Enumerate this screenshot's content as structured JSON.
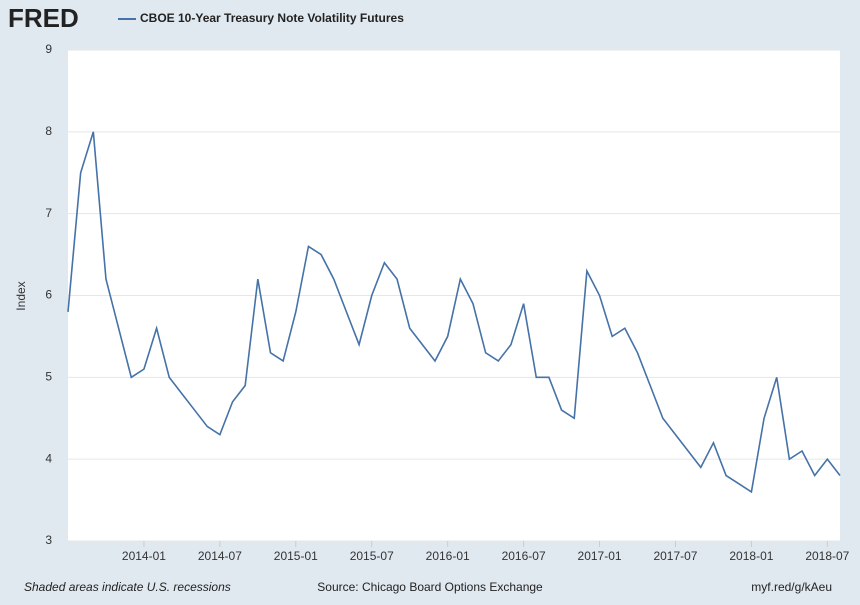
{
  "chart_data": {
    "type": "line",
    "logo": "FRED",
    "y_label": "Index",
    "note": "Shaded areas indicate U.S. recessions",
    "source": "Source: Chicago Board Options Exchange",
    "link": "myf.red/g/kAeu",
    "grid": true,
    "x": [
      "2013-07",
      "2013-08",
      "2013-09",
      "2013-10",
      "2013-11",
      "2013-12",
      "2014-01",
      "2014-02",
      "2014-03",
      "2014-04",
      "2014-05",
      "2014-06",
      "2014-07",
      "2014-08",
      "2014-09",
      "2014-10",
      "2014-11",
      "2014-12",
      "2015-01",
      "2015-02",
      "2015-03",
      "2015-04",
      "2015-05",
      "2015-06",
      "2015-07",
      "2015-08",
      "2015-09",
      "2015-10",
      "2015-11",
      "2015-12",
      "2016-01",
      "2016-02",
      "2016-03",
      "2016-04",
      "2016-05",
      "2016-06",
      "2016-07",
      "2016-08",
      "2016-09",
      "2016-10",
      "2016-11",
      "2016-12",
      "2017-01",
      "2017-02",
      "2017-03",
      "2017-04",
      "2017-05",
      "2017-06",
      "2017-07",
      "2017-08",
      "2017-09",
      "2017-10",
      "2017-11",
      "2017-12",
      "2018-01",
      "2018-02",
      "2018-03",
      "2018-04",
      "2018-05",
      "2018-06",
      "2018-07",
      "2018-08"
    ],
    "series": [
      {
        "name": "CBOE 10-Year Treasury Note Volatility Futures",
        "color": "#4572a7",
        "values": [
          5.8,
          7.5,
          8.0,
          6.2,
          5.6,
          5.0,
          5.1,
          5.6,
          5.0,
          4.8,
          4.6,
          4.4,
          4.3,
          4.7,
          4.9,
          6.2,
          5.3,
          5.2,
          5.8,
          6.6,
          6.5,
          6.2,
          5.8,
          5.4,
          6.0,
          6.4,
          6.2,
          5.6,
          5.4,
          5.2,
          5.5,
          6.2,
          5.9,
          5.3,
          5.2,
          5.4,
          5.9,
          5.0,
          5.0,
          4.6,
          4.5,
          6.3,
          6.0,
          5.5,
          5.6,
          5.3,
          4.9,
          4.5,
          4.3,
          4.1,
          3.9,
          4.2,
          3.8,
          3.7,
          3.6,
          4.5,
          5.0,
          4.0,
          4.1,
          3.8,
          4.0,
          3.8
        ]
      }
    ],
    "xlim": [
      "2013-07",
      "2018-08"
    ],
    "xticks": [
      "2014-01",
      "2014-07",
      "2015-01",
      "2015-07",
      "2016-01",
      "2016-07",
      "2017-01",
      "2017-07",
      "2018-01",
      "2018-07"
    ],
    "ylim": [
      3,
      9
    ],
    "yticks": [
      3,
      4,
      5,
      6,
      7,
      8,
      9
    ]
  }
}
